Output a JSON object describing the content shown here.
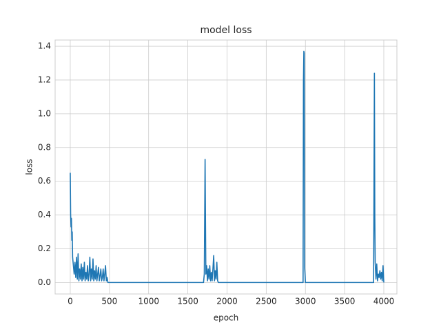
{
  "chart_data": {
    "type": "line",
    "title": "model loss",
    "x_label": "epoch",
    "y_label": "loss",
    "x": [
      0,
      5,
      10,
      15,
      20,
      25,
      30,
      40,
      50,
      60,
      70,
      80,
      90,
      100,
      110,
      120,
      130,
      140,
      150,
      160,
      170,
      180,
      190,
      200,
      210,
      220,
      230,
      240,
      250,
      260,
      270,
      280,
      290,
      300,
      310,
      320,
      330,
      340,
      350,
      360,
      370,
      380,
      390,
      400,
      410,
      420,
      430,
      440,
      450,
      460,
      470,
      480,
      500,
      1700,
      1710,
      1720,
      1730,
      1740,
      1750,
      1760,
      1770,
      1780,
      1790,
      1800,
      1810,
      1820,
      1830,
      1840,
      1850,
      1860,
      1870,
      1880,
      1890,
      2970,
      2975,
      2980,
      2985,
      2990,
      2995,
      3000,
      3870,
      3880,
      3885,
      3890,
      3900,
      3910,
      3920,
      3930,
      3940,
      3950,
      3960,
      3970,
      3980,
      3990,
      4000
    ],
    "series": [
      {
        "name": "loss",
        "color": "#1f77b4",
        "values": [
          0.65,
          0.4,
          0.33,
          0.38,
          0.25,
          0.3,
          0.15,
          0.1,
          0.05,
          0.12,
          0.03,
          0.15,
          0.02,
          0.17,
          0.01,
          0.08,
          0.02,
          0.11,
          0.01,
          0.09,
          0.02,
          0.12,
          0.01,
          0.06,
          0.02,
          0.1,
          0.01,
          0.05,
          0.15,
          0.01,
          0.08,
          0.02,
          0.14,
          0.01,
          0.07,
          0.02,
          0.1,
          0.01,
          0.05,
          0.09,
          0.01,
          0.04,
          0.08,
          0.01,
          0.03,
          0.08,
          0.01,
          0.05,
          0.1,
          0.01,
          0.03,
          0,
          0,
          0,
          0.05,
          0.73,
          0.05,
          0.1,
          0.01,
          0.08,
          0.02,
          0.1,
          0.01,
          0.06,
          0.01,
          0.08,
          0.16,
          0.01,
          0.07,
          0.02,
          0.12,
          0.01,
          0,
          0,
          1.2,
          1.37,
          1.36,
          0.09,
          0.05,
          0,
          0,
          1.24,
          0.4,
          0.12,
          0.02,
          0.11,
          0.01,
          0.05,
          0.03,
          0.07,
          0.02,
          0.06,
          0.01,
          0.1,
          0
        ]
      }
    ],
    "xlim": [
      -193,
      4167
    ],
    "ylim": [
      -0.068,
      1.437
    ],
    "xticks": [
      0,
      500,
      1000,
      1500,
      2000,
      2500,
      3000,
      3500,
      4000
    ],
    "yticks": [
      {
        "value": 0,
        "label": "0.0"
      },
      0.2,
      0.4,
      0.6,
      0.8,
      {
        "value": 1,
        "label": "1.0"
      },
      1.2,
      1.4
    ],
    "grid": true
  }
}
